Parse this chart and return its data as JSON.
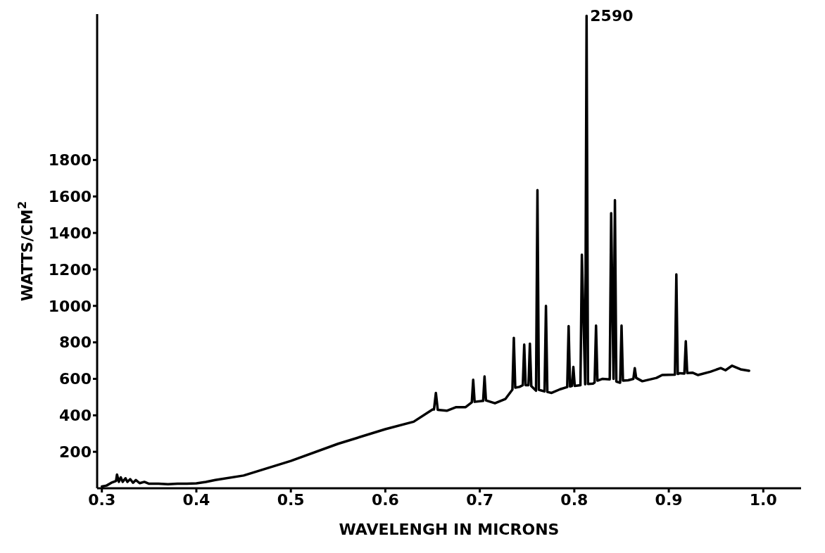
{
  "chart_data": {
    "type": "line",
    "xlabel": "WAVELENGH IN MICRONS",
    "ylabel": "WATTS/CM$^{2}$",
    "color": "#000000",
    "marker": "none",
    "line_style": "solid",
    "x": [
      0.3,
      0.305,
      0.31,
      0.315,
      0.316,
      0.318,
      0.32,
      0.322,
      0.325,
      0.327,
      0.33,
      0.333,
      0.336,
      0.34,
      0.345,
      0.35,
      0.36,
      0.37,
      0.38,
      0.39,
      0.4,
      0.41,
      0.42,
      0.45,
      0.5,
      0.55,
      0.6,
      0.63,
      0.65,
      0.6515,
      0.6535,
      0.6555,
      0.665,
      0.675,
      0.685,
      0.6915,
      0.693,
      0.6945,
      0.7035,
      0.705,
      0.7065,
      0.716,
      0.727,
      0.7345,
      0.736,
      0.7375,
      0.742,
      0.7455,
      0.747,
      0.7485,
      0.7515,
      0.753,
      0.7545,
      0.7595,
      0.761,
      0.7625,
      0.7685,
      0.77,
      0.7715,
      0.776,
      0.785,
      0.7925,
      0.794,
      0.7955,
      0.7975,
      0.799,
      0.8005,
      0.8065,
      0.808,
      0.8115,
      0.813,
      0.8145,
      0.82,
      0.8215,
      0.823,
      0.8245,
      0.83,
      0.8375,
      0.839,
      0.8415,
      0.843,
      0.8445,
      0.848,
      0.8485,
      0.85,
      0.8515,
      0.857,
      0.8625,
      0.864,
      0.8655,
      0.872,
      0.887,
      0.893,
      0.9065,
      0.908,
      0.9095,
      0.912,
      0.9165,
      0.918,
      0.9195,
      0.925,
      0.931,
      0.944,
      0.955,
      0.96,
      0.967,
      0.976,
      0.985
    ],
    "values": [
      10,
      15,
      30,
      40,
      75,
      35,
      60,
      35,
      55,
      35,
      50,
      30,
      45,
      28,
      35,
      25,
      25,
      22,
      25,
      25,
      27,
      35,
      45,
      70,
      150,
      244,
      324,
      365,
      432,
      432,
      523,
      430,
      425,
      445,
      445,
      471,
      595,
      474,
      479,
      613,
      482,
      466,
      489,
      541,
      825,
      552,
      556,
      565,
      788,
      565,
      565,
      793,
      560,
      535,
      1635,
      540,
      531,
      1000,
      528,
      523,
      543,
      555,
      889,
      558,
      561,
      665,
      561,
      565,
      1281,
      570,
      2590,
      572,
      574,
      580,
      892,
      590,
      600,
      597,
      1508,
      600,
      1580,
      585,
      579,
      579,
      892,
      590,
      592,
      600,
      659,
      605,
      587,
      605,
      621,
      623,
      1173,
      627,
      631,
      629,
      806,
      632,
      634,
      621,
      639,
      659,
      647,
      672,
      652,
      644
    ],
    "xlim": [
      0.295,
      1.04
    ],
    "ylim": [
      0,
      2600
    ],
    "xticks": [
      0.3,
      0.4,
      0.5,
      0.6,
      0.7,
      0.8,
      0.9,
      {
        "value": 1.0,
        "label": "1.0"
      }
    ],
    "yticks": [
      200,
      400,
      600,
      800,
      1000,
      1200,
      1400,
      1600,
      1800
    ],
    "annotations": [
      {
        "text": "2590",
        "x": 0.813,
        "y": 2590
      }
    ]
  }
}
